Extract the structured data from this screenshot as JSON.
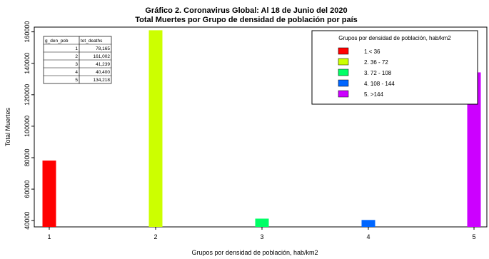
{
  "chart_data": {
    "type": "bar",
    "title": "Gráfico 2. Coronavirus Global: Al 18 de Junio del 2020",
    "subtitle": "Total Muertes por Grupo de densidad de población por país",
    "xlabel": "Grupos por densidad de población, hab/km2",
    "ylabel": "Total Muertes",
    "categories": [
      "1",
      "2",
      "3",
      "4",
      "5"
    ],
    "values": [
      78165,
      161002,
      41239,
      40400,
      134218
    ],
    "colors": [
      "#ff0000",
      "#ccff00",
      "#00ff66",
      "#0066ff",
      "#cc00ff"
    ],
    "ylim": [
      36000,
      163000
    ],
    "yticks": [
      40000,
      60000,
      80000,
      100000,
      120000,
      140000,
      160000
    ],
    "ytick_labels": [
      "40000",
      "60000",
      "80000",
      "100000",
      "120000",
      "140000",
      "160000"
    ],
    "legend": {
      "title": "Grupos por densidad de población, hab/km2",
      "placement": "top-right",
      "entries": [
        "1.< 36",
        "2. 36 - 72",
        "3. 72 - 108",
        "4. 108 - 144",
        "5. >144"
      ]
    },
    "table": {
      "headers": [
        "g_den_pob",
        "tot_deaths"
      ],
      "rows": [
        [
          "1",
          "78,165"
        ],
        [
          "2",
          "161,002"
        ],
        [
          "3",
          "41,239"
        ],
        [
          "4",
          "40,400"
        ],
        [
          "5",
          "134,218"
        ]
      ]
    }
  }
}
